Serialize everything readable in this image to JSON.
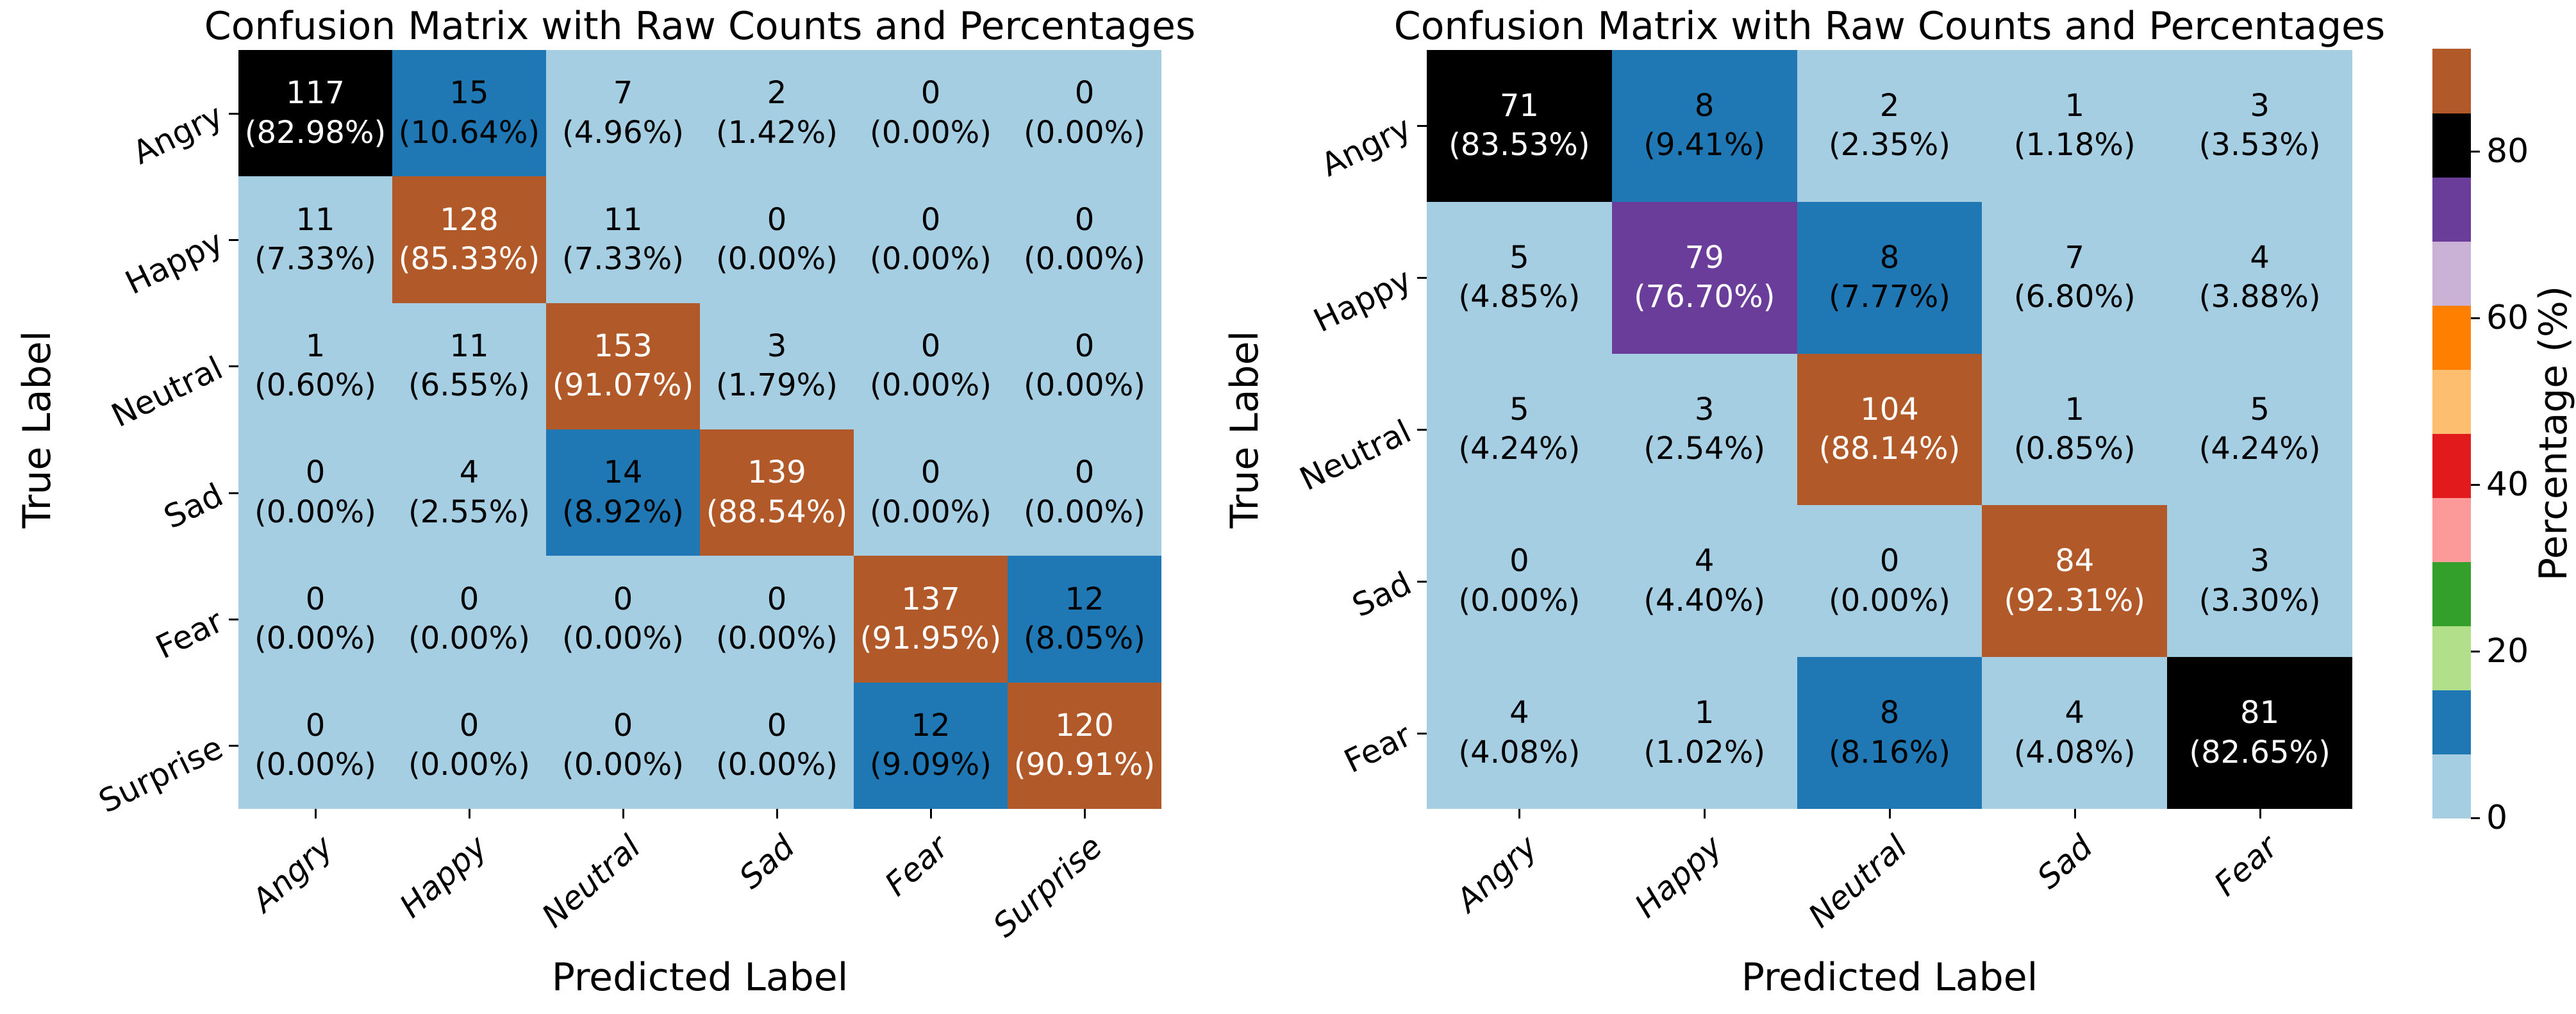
{
  "figure": {
    "left_title": "Confusion Matrix with Raw Counts and Percentages",
    "right_title": "Confusion Matrix with Raw Counts and Percentages"
  },
  "chart_data": [
    {
      "type": "heatmap",
      "title": "Confusion Matrix with Raw Counts and Percentages",
      "xlabel": "Predicted Label",
      "ylabel": "True Label",
      "x_categories": [
        "Angry",
        "Happy",
        "Neutral",
        "Sad",
        "Fear",
        "Surprise"
      ],
      "y_categories": [
        "Angry",
        "Happy",
        "Neutral",
        "Sad",
        "Fear",
        "Surprise"
      ],
      "counts": [
        [
          117,
          15,
          7,
          2,
          0,
          0
        ],
        [
          11,
          128,
          11,
          0,
          0,
          0
        ],
        [
          1,
          11,
          153,
          3,
          0,
          0
        ],
        [
          0,
          4,
          14,
          139,
          0,
          0
        ],
        [
          0,
          0,
          0,
          0,
          137,
          12
        ],
        [
          0,
          0,
          0,
          0,
          12,
          120
        ]
      ],
      "percentages": [
        [
          82.98,
          10.64,
          4.96,
          1.42,
          0.0,
          0.0
        ],
        [
          7.33,
          85.33,
          7.33,
          0.0,
          0.0,
          0.0
        ],
        [
          0.6,
          6.55,
          91.07,
          1.79,
          0.0,
          0.0
        ],
        [
          0.0,
          2.55,
          8.92,
          88.54,
          0.0,
          0.0
        ],
        [
          0.0,
          0.0,
          0.0,
          0.0,
          91.95,
          8.05
        ],
        [
          0.0,
          0.0,
          0.0,
          0.0,
          9.09,
          90.91
        ]
      ]
    },
    {
      "type": "heatmap",
      "title": "Confusion Matrix with Raw Counts and Percentages",
      "xlabel": "Predicted Label",
      "ylabel": "True Label",
      "x_categories": [
        "Angry",
        "Happy",
        "Neutral",
        "Sad",
        "Fear"
      ],
      "y_categories": [
        "Angry",
        "Happy",
        "Neutral",
        "Sad",
        "Fear"
      ],
      "counts": [
        [
          71,
          8,
          2,
          1,
          3
        ],
        [
          5,
          79,
          8,
          7,
          4
        ],
        [
          5,
          3,
          104,
          1,
          5
        ],
        [
          0,
          4,
          0,
          84,
          3
        ],
        [
          4,
          1,
          8,
          4,
          81
        ]
      ],
      "percentages": [
        [
          83.53,
          9.41,
          2.35,
          1.18,
          3.53
        ],
        [
          4.85,
          76.7,
          7.77,
          6.8,
          3.88
        ],
        [
          4.24,
          2.54,
          88.14,
          0.85,
          4.24
        ],
        [
          0.0,
          4.4,
          0.0,
          92.31,
          3.3
        ],
        [
          4.08,
          1.02,
          8.16,
          4.08,
          82.65
        ]
      ]
    }
  ],
  "colorbar": {
    "label": "Percentage (%)",
    "ticks": [
      0,
      20,
      40,
      60,
      80
    ],
    "vmax": 92.31,
    "num_bins": 12,
    "colors": [
      "#a6cee3",
      "#1f78b4",
      "#b2df8a",
      "#33a02c",
      "#fb9a99",
      "#e31a1c",
      "#fdbf6f",
      "#ff7f00",
      "#cab2d6",
      "#6a3d9a",
      "#000000",
      "#b15928"
    ],
    "white_text_from_bin": 9,
    "cell_text_black": "#000000",
    "cell_text_white": "#ffffff"
  }
}
